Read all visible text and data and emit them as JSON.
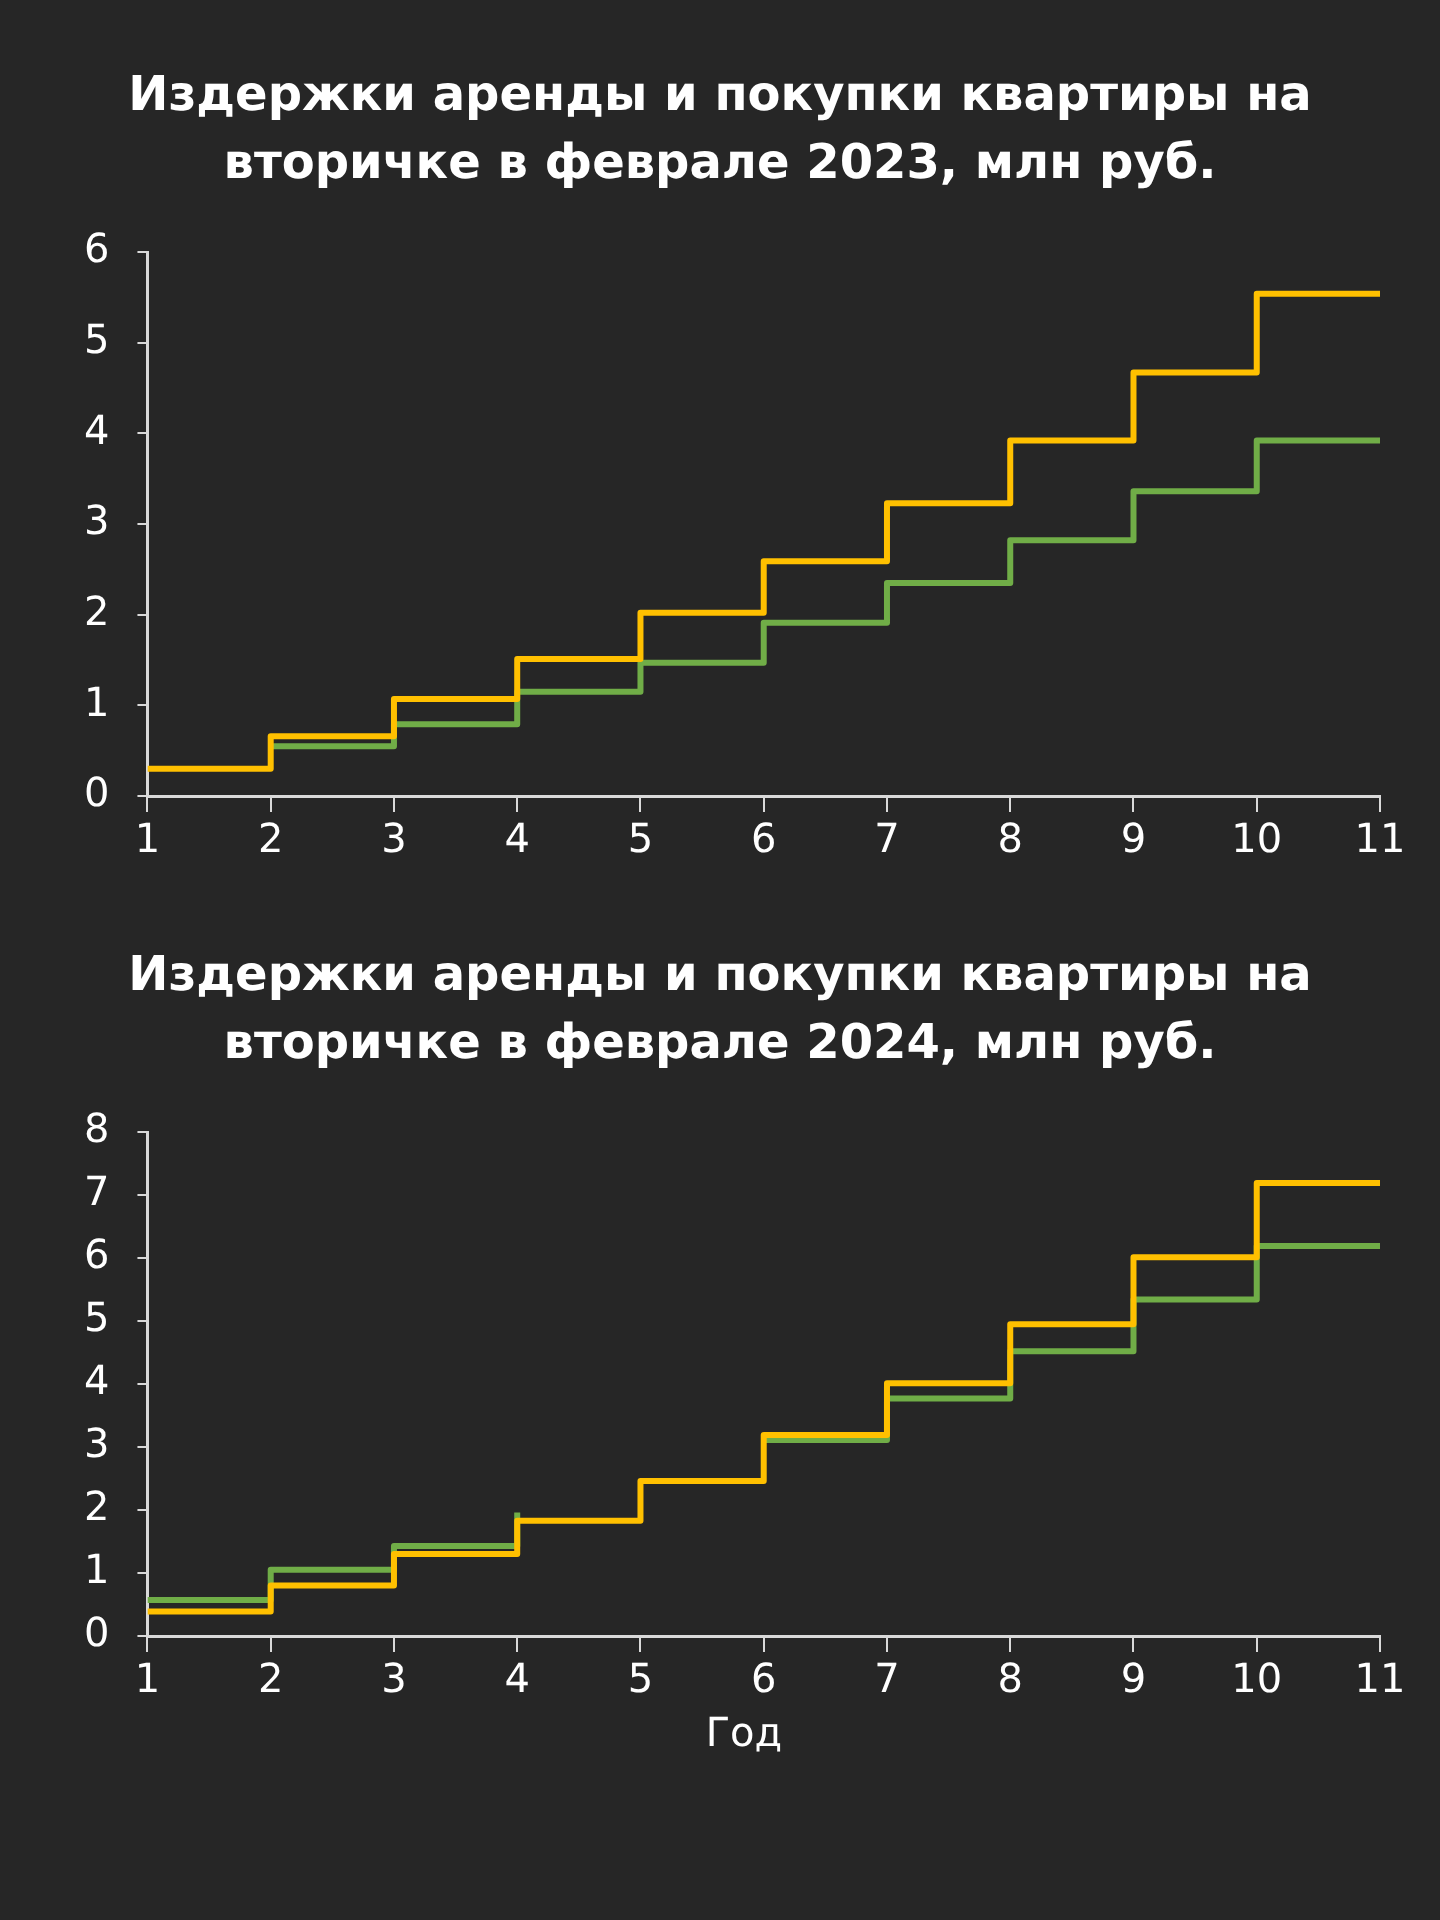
{
  "chart_data": [
    {
      "type": "step",
      "title": "Издержки аренды и покупки квартиры на вторичке в феврале 2023, млн руб.",
      "x": [
        1,
        2,
        3,
        4,
        5,
        6,
        7,
        8,
        9,
        10,
        11
      ],
      "xlim": [
        1,
        11
      ],
      "xticks": [
        1,
        2,
        3,
        4,
        5,
        6,
        7,
        8,
        9,
        10,
        11
      ],
      "ylim": [
        0,
        6
      ],
      "yticks": [
        0,
        1,
        2,
        3,
        4,
        5,
        6
      ],
      "legend": false,
      "series": [
        {
          "color": "#ffc000",
          "values": [
            0.3,
            0.66,
            1.07,
            1.51,
            2.02,
            2.59,
            3.23,
            3.92,
            4.67,
            5.54,
            5.54
          ]
        },
        {
          "color": "#70ad47",
          "values": [
            null,
            0.55,
            0.79,
            1.15,
            1.47,
            1.91,
            2.35,
            2.82,
            3.36,
            3.92,
            3.92
          ]
        }
      ]
    },
    {
      "type": "step",
      "title": "Издержки аренды и покупки квартиры на вторичке в феврале 2024, млн руб.",
      "xlabel": "Год",
      "x": [
        1,
        2,
        3,
        4,
        5,
        6,
        7,
        8,
        9,
        10,
        11
      ],
      "xlim": [
        1,
        11
      ],
      "xticks": [
        1,
        2,
        3,
        4,
        5,
        6,
        7,
        8,
        9,
        10,
        11
      ],
      "ylim": [
        0,
        8
      ],
      "yticks": [
        0,
        1,
        2,
        3,
        4,
        5,
        6,
        7,
        8
      ],
      "legend": false,
      "series": [
        {
          "color": "#ffc000",
          "values": [
            0.39,
            0.8,
            1.3,
            1.83,
            2.46,
            3.19,
            4.01,
            4.95,
            6.01,
            7.19,
            7.19
          ]
        },
        {
          "color": "#70ad47",
          "values": [
            0.57,
            1.05,
            1.43,
            1.96,
            null,
            3.11,
            3.77,
            4.52,
            5.34,
            6.19,
            6.19
          ]
        }
      ]
    }
  ]
}
